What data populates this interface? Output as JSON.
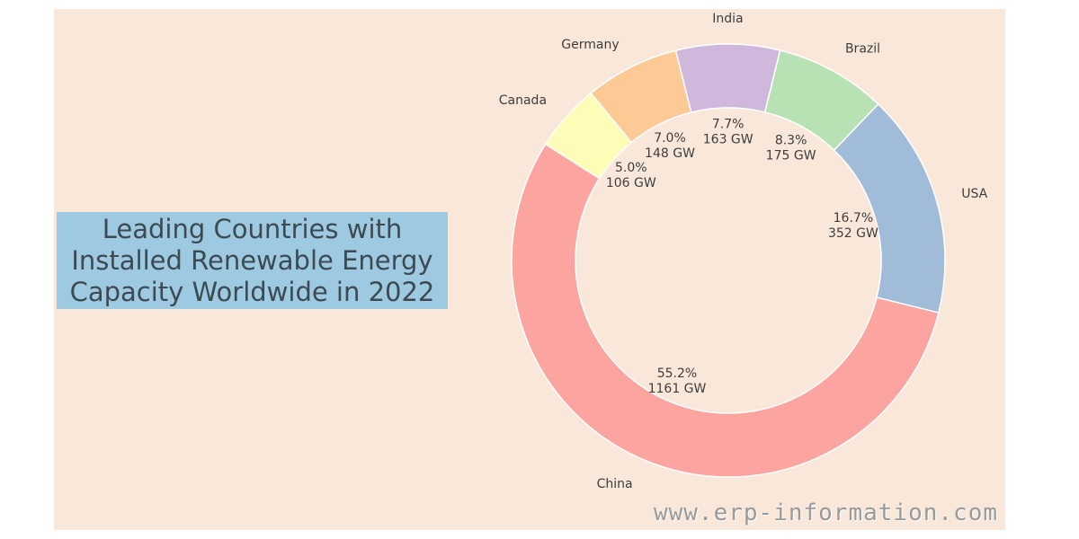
{
  "chart_data": {
    "type": "pie",
    "variant": "donut",
    "title": "Leading Countries with\nInstalled Renewable Energy\nCapacity Worldwide in 2022",
    "categories": [
      "China",
      "USA",
      "Brazil",
      "India",
      "Germany",
      "Canada"
    ],
    "values": [
      1161,
      352,
      175,
      163,
      148,
      106
    ],
    "percentages": [
      "55.2%",
      "16.7%",
      "8.3%",
      "7.7%",
      "7.0%",
      "5.0%"
    ],
    "value_labels": [
      "1161 GW",
      "352 GW",
      "175 GW",
      "163 GW",
      "148 GW",
      "106 GW"
    ],
    "colors": [
      "#fba4a0",
      "#a1bcd8",
      "#b8e2b4",
      "#d0b8dc",
      "#fdca96",
      "#fefdb8"
    ],
    "unit": "GW"
  },
  "colors": {
    "background": "#f9e8da",
    "title_box": "#9ecae1",
    "text": "#3d3d3d"
  },
  "watermark": "www.erp-information.com"
}
